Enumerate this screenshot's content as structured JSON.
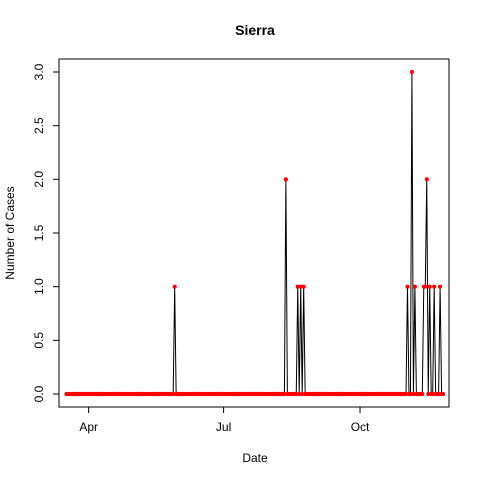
{
  "chart_data": {
    "type": "line",
    "title": "Sierra",
    "xlabel": "Date",
    "ylabel": "Number of Cases",
    "ylim": [
      0,
      3
    ],
    "yticks": [
      "0.0",
      "0.5",
      "1.0",
      "1.5",
      "2.0",
      "2.5",
      "3.0"
    ],
    "xlim": [
      "2020-03-12",
      "2020-11-30"
    ],
    "xticks": [
      {
        "date": "2020-04-01",
        "label": "Apr"
      },
      {
        "date": "2020-07-01",
        "label": "Jul"
      },
      {
        "date": "2020-10-01",
        "label": "Oct"
      }
    ],
    "x_start": "2020-03-17",
    "x_end": "2020-11-26",
    "nonzero_points": [
      {
        "date": "2020-05-29",
        "value": 1
      },
      {
        "date": "2020-08-12",
        "value": 2
      },
      {
        "date": "2020-08-20",
        "value": 1
      },
      {
        "date": "2020-08-22",
        "value": 1
      },
      {
        "date": "2020-08-24",
        "value": 1
      },
      {
        "date": "2020-11-02",
        "value": 1
      },
      {
        "date": "2020-11-05",
        "value": 3
      },
      {
        "date": "2020-11-07",
        "value": 1
      },
      {
        "date": "2020-11-13",
        "value": 1
      },
      {
        "date": "2020-11-14",
        "value": 1
      },
      {
        "date": "2020-11-15",
        "value": 2
      },
      {
        "date": "2020-11-17",
        "value": 1
      },
      {
        "date": "2020-11-20",
        "value": 1
      },
      {
        "date": "2020-11-24",
        "value": 1
      }
    ],
    "line_color": "#000000",
    "point_color": "#ff0000",
    "grid": false,
    "legend": "none"
  }
}
